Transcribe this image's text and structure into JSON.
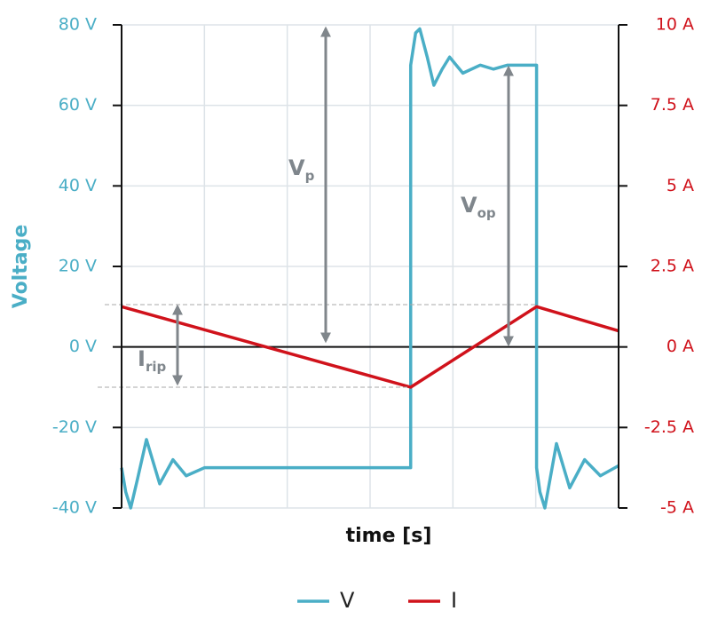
{
  "chart_data": {
    "type": "line",
    "xlabel": "time [s]",
    "ylabel": "Voltage",
    "xlim": [
      0,
      6
    ],
    "xticks": [
      0,
      1,
      2,
      3,
      4,
      5,
      6
    ],
    "ylim": [
      -40,
      80
    ],
    "yticks": [
      {
        "value": -40,
        "label": "-40 V"
      },
      {
        "value": -20,
        "label": "-20 V"
      },
      {
        "value": 0,
        "label": "0 V"
      },
      {
        "value": 20,
        "label": "20 V"
      },
      {
        "value": 40,
        "label": "40 V"
      },
      {
        "value": 60,
        "label": "60 V"
      },
      {
        "value": 80,
        "label": "80 V"
      }
    ],
    "y2lim": [
      -5,
      10
    ],
    "y2ticks": [
      {
        "value": -5,
        "label": "-5 A"
      },
      {
        "value": -2.5,
        "label": "-2.5 A"
      },
      {
        "value": 0,
        "label": "0 A"
      },
      {
        "value": 2.5,
        "label": "2.5 A"
      },
      {
        "value": 5,
        "label": "5 A"
      },
      {
        "value": 7.5,
        "label": "7.5 A"
      },
      {
        "value": 10,
        "label": "10 A"
      }
    ],
    "grid": true,
    "legend": "bottom",
    "series": [
      {
        "name": "V",
        "color": "#4aaec6",
        "x": [
          0,
          0.05,
          0.11,
          0.19,
          0.3,
          0.46,
          0.62,
          0.78,
          1.0,
          3.49,
          3.49,
          3.55,
          3.6,
          3.69,
          3.77,
          3.87,
          3.96,
          4.12,
          4.33,
          4.49,
          4.66,
          5.01,
          5.01,
          5.05,
          5.11,
          5.25,
          5.41,
          5.59,
          5.78,
          6
        ],
        "values": [
          -30,
          -36,
          -40,
          -33,
          -23,
          -34,
          -28,
          -32,
          -30,
          -30,
          70,
          78,
          79,
          72,
          65,
          69,
          72,
          68,
          70,
          69,
          70,
          70,
          -30,
          -36,
          -40,
          -24,
          -35,
          -28,
          -32,
          -29.5
        ]
      },
      {
        "name": "I",
        "color": "#d0121b",
        "axis": "y2",
        "x": [
          0,
          3.49,
          5.01,
          6
        ],
        "values": [
          1.25,
          -1.25,
          1.25,
          0.5
        ]
      }
    ],
    "annotations": [
      {
        "text": "V",
        "sub": "p"
      },
      {
        "text": "V",
        "sub": "op"
      },
      {
        "text": "I",
        "sub": "rip"
      }
    ]
  }
}
